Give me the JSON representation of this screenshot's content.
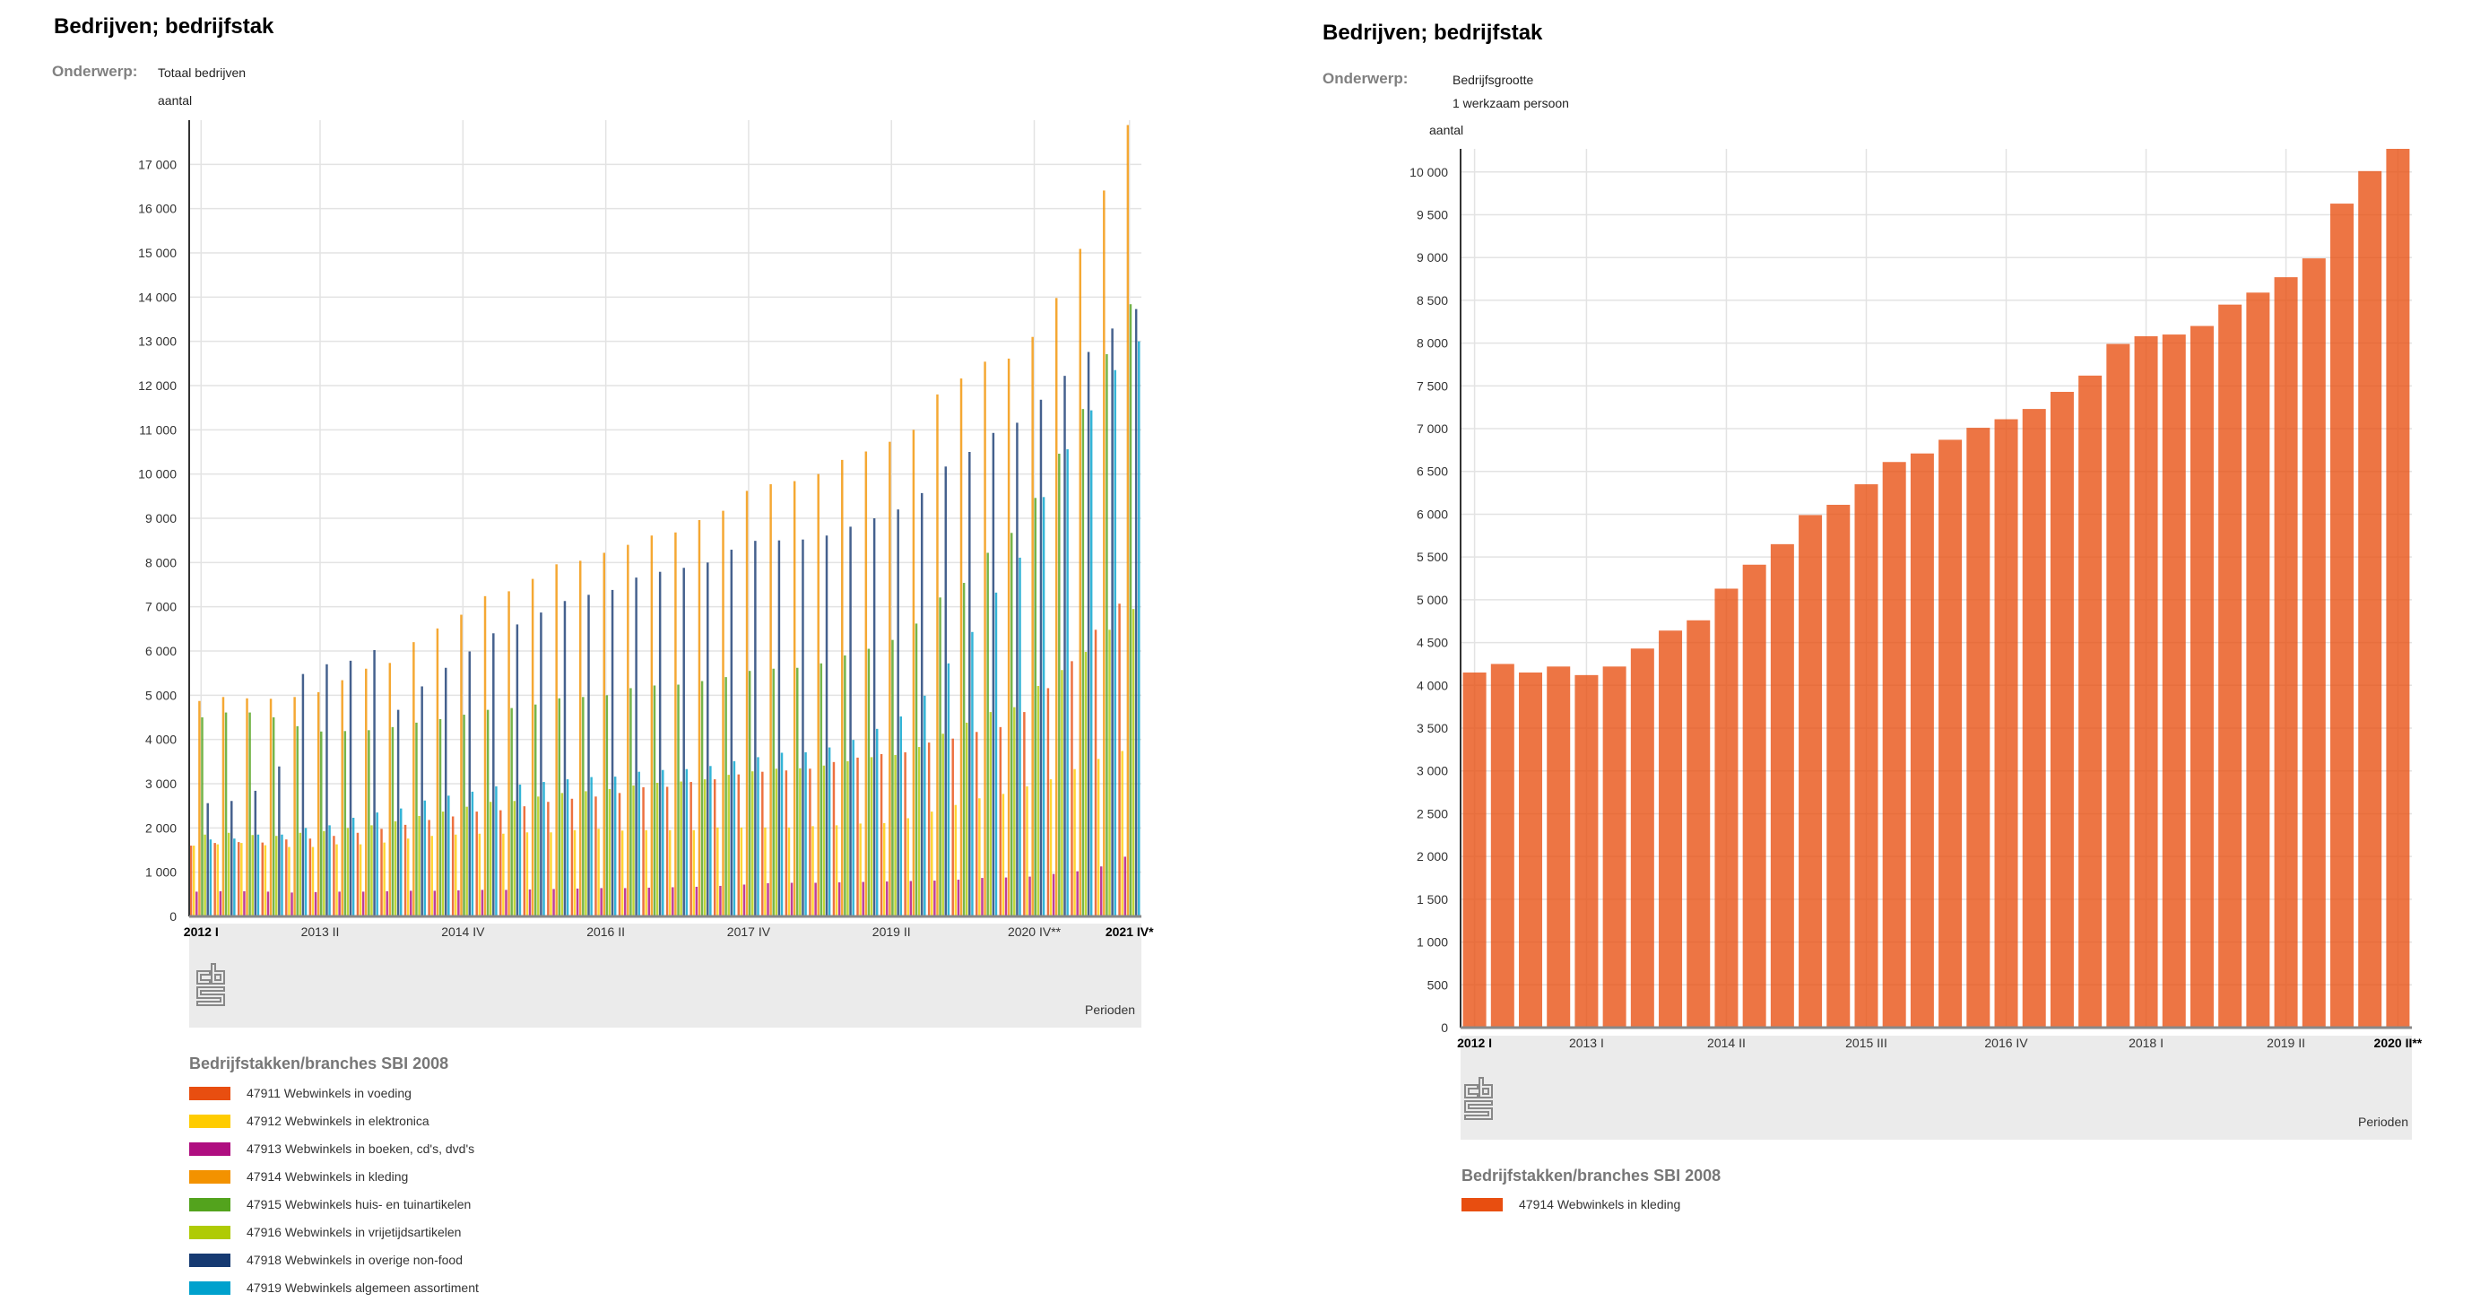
{
  "left": {
    "title": "Bedrijven; bedrijfstak",
    "subject_label": "Onderwerp:",
    "subject": "Totaal bedrijven",
    "unit": "aantal",
    "xaxis_title": "Perioden",
    "legend_title": "Bedrijfstakken/branches SBI 2008"
  },
  "right": {
    "title": "Bedrijven; bedrijfstak",
    "subject_label": "Onderwerp:",
    "subject": "Bedrijfsgrootte",
    "subject2": "1 werkzaam persoon",
    "unit": "aantal",
    "xaxis_title": "Perioden",
    "legend_title": "Bedrijfstakken/branches SBI 2008"
  },
  "chart_data": [
    {
      "type": "bar",
      "title": "Bedrijven; bedrijfstak",
      "ylabel": "aantal",
      "xlabel": "Perioden",
      "ylim": [
        0,
        18000
      ],
      "yticks": [
        0,
        1000,
        2000,
        3000,
        4000,
        5000,
        6000,
        7000,
        8000,
        9000,
        10000,
        11000,
        12000,
        13000,
        14000,
        15000,
        16000,
        17000
      ],
      "n_periods": 40,
      "tick_labels": [
        {
          "i": 0,
          "label": "2012 I",
          "bold": true
        },
        {
          "i": 5,
          "label": "2013 II"
        },
        {
          "i": 11,
          "label": "2014 IV"
        },
        {
          "i": 17,
          "label": "2016 II"
        },
        {
          "i": 23,
          "label": "2017 IV"
        },
        {
          "i": 29,
          "label": "2019 II"
        },
        {
          "i": 35,
          "label": "2020 IV**"
        },
        {
          "i": 39,
          "label": "2021 IV*",
          "bold": true
        }
      ],
      "series": [
        {
          "name": "47911 Webwinkels in voeding",
          "color": "#E84E10",
          "values": [
            1600,
            1660,
            1680,
            1670,
            1740,
            1760,
            1820,
            1890,
            1980,
            2070,
            2180,
            2260,
            2370,
            2400,
            2490,
            2590,
            2660,
            2710,
            2790,
            2920,
            2930,
            3040,
            3100,
            3210,
            3270,
            3300,
            3340,
            3490,
            3590,
            3670,
            3710,
            3930,
            4020,
            4170,
            4280,
            4620,
            5160,
            5770,
            6480,
            7070
          ]
        },
        {
          "name": "47912 Webwinkels in elektronica",
          "color": "#FFCC00",
          "values": [
            1600,
            1630,
            1660,
            1610,
            1570,
            1570,
            1630,
            1630,
            1670,
            1760,
            1820,
            1850,
            1870,
            1870,
            1900,
            1900,
            1950,
            1980,
            1940,
            1950,
            1950,
            1950,
            2010,
            2010,
            2010,
            2010,
            2040,
            2060,
            2100,
            2110,
            2220,
            2370,
            2520,
            2670,
            2770,
            2940,
            3100,
            3330,
            3560,
            3740
          ]
        },
        {
          "name": "47913 Webwinkels in boeken, cd's, dvd's",
          "color": "#AF0E80",
          "values": [
            560,
            570,
            570,
            560,
            540,
            550,
            560,
            560,
            570,
            580,
            580,
            590,
            600,
            600,
            610,
            620,
            630,
            640,
            640,
            650,
            660,
            670,
            690,
            720,
            750,
            760,
            760,
            770,
            780,
            790,
            800,
            810,
            830,
            870,
            880,
            900,
            960,
            1020,
            1130,
            1350
          ]
        },
        {
          "name": "47914 Webwinkels in kleding",
          "color": "#F39200",
          "values": [
            4870,
            4960,
            4930,
            4920,
            4960,
            5070,
            5340,
            5600,
            5730,
            6200,
            6510,
            6820,
            7240,
            7350,
            7630,
            7960,
            8040,
            8220,
            8400,
            8610,
            8680,
            8960,
            9170,
            9620,
            9770,
            9840,
            10000,
            10320,
            10510,
            10730,
            11000,
            11800,
            12160,
            12540,
            12610,
            13100,
            13980,
            15090,
            16410,
            17890
          ]
        },
        {
          "name": "47915 Webwinkels huis- en tuinartikelen",
          "color": "#53A31D",
          "values": [
            4500,
            4610,
            4610,
            4500,
            4300,
            4180,
            4190,
            4210,
            4280,
            4380,
            4460,
            4560,
            4670,
            4710,
            4790,
            4930,
            4960,
            5000,
            5160,
            5220,
            5240,
            5320,
            5410,
            5550,
            5600,
            5620,
            5720,
            5900,
            6050,
            6250,
            6620,
            7210,
            7540,
            8220,
            8670,
            9460,
            10460,
            11470,
            12710,
            13840
          ]
        },
        {
          "name": "47916 Webwinkels in vrijetijdsartikelen",
          "color": "#AFCB05",
          "values": [
            1850,
            1890,
            1840,
            1820,
            1890,
            1930,
            2000,
            2060,
            2150,
            2270,
            2370,
            2480,
            2590,
            2610,
            2710,
            2790,
            2830,
            2880,
            2960,
            3020,
            3050,
            3100,
            3200,
            3280,
            3340,
            3350,
            3410,
            3510,
            3600,
            3650,
            3830,
            4130,
            4380,
            4620,
            4730,
            5210,
            5570,
            5980,
            6480,
            6950
          ]
        },
        {
          "name": "47918 Webwinkels in overige non-food",
          "color": "#163A72",
          "values": [
            2560,
            2610,
            2840,
            3390,
            5480,
            5700,
            5780,
            6020,
            4670,
            5200,
            5620,
            5990,
            6400,
            6600,
            6870,
            7130,
            7270,
            7380,
            7660,
            7790,
            7880,
            8000,
            8290,
            8490,
            8500,
            8520,
            8610,
            8810,
            9000,
            9200,
            9570,
            10170,
            10500,
            10930,
            11160,
            11680,
            12220,
            12760,
            13290,
            13730
          ]
        },
        {
          "name": "47919 Webwinkels algemeen assortiment",
          "color": "#00A1CD",
          "values": [
            1740,
            1760,
            1850,
            1850,
            2000,
            2060,
            2230,
            2350,
            2440,
            2620,
            2730,
            2820,
            2940,
            2980,
            3040,
            3100,
            3150,
            3160,
            3270,
            3310,
            3330,
            3400,
            3510,
            3600,
            3700,
            3710,
            3820,
            3990,
            4240,
            4520,
            4990,
            5720,
            6430,
            7320,
            8110,
            9480,
            10560,
            11440,
            12350,
            13000
          ]
        }
      ]
    },
    {
      "type": "bar",
      "title": "Bedrijven; bedrijfstak",
      "ylabel": "aantal",
      "xlabel": "Perioden",
      "ylim": [
        0,
        10270
      ],
      "yticks": [
        0,
        500,
        1000,
        1500,
        2000,
        2500,
        3000,
        3500,
        4000,
        4500,
        5000,
        5500,
        6000,
        6500,
        7000,
        7500,
        8000,
        8500,
        9000,
        9500,
        10000
      ],
      "n_periods": 34,
      "tick_labels": [
        {
          "i": 0,
          "label": "2012 I",
          "bold": true
        },
        {
          "i": 4,
          "label": "2013 I"
        },
        {
          "i": 9,
          "label": "2014 II"
        },
        {
          "i": 14,
          "label": "2015 III"
        },
        {
          "i": 19,
          "label": "2016 IV"
        },
        {
          "i": 24,
          "label": "2018 I"
        },
        {
          "i": 29,
          "label": "2019 II"
        },
        {
          "i": 33,
          "label": "2020 II**",
          "bold": true
        }
      ],
      "series": [
        {
          "name": "47914 Webwinkels in kleding",
          "color": "#E84E10",
          "values": [
            4150,
            4250,
            4150,
            4220,
            4120,
            4220,
            4430,
            4640,
            4760,
            5130,
            5410,
            5650,
            5990,
            6110,
            6350,
            6610,
            6710,
            6870,
            7010,
            7110,
            7230,
            7430,
            7620,
            7990,
            8080,
            8100,
            8200,
            8450,
            8590,
            8770,
            8990,
            9630,
            10010,
            10270
          ]
        }
      ]
    }
  ]
}
